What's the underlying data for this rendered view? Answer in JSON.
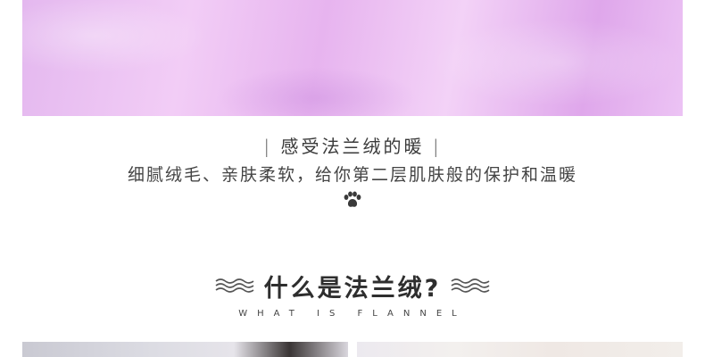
{
  "banner": {
    "image": "pink-flannel-fabric-photo"
  },
  "feature": {
    "bar_left": "|",
    "title": "感受法兰绒的暖",
    "bar_right": "|",
    "description": "细腻绒毛、亲肤柔软，给你第二层肌肤般的保护和温暖",
    "icon": "paw-icon"
  },
  "section": {
    "heading": "什么是法兰绒?",
    "english": "WHAT IS FLANNEL",
    "left_icon": "wave-icon",
    "right_icon": "wave-icon"
  },
  "colors": {
    "fabric": "#ecc3f4",
    "text": "#333333"
  }
}
